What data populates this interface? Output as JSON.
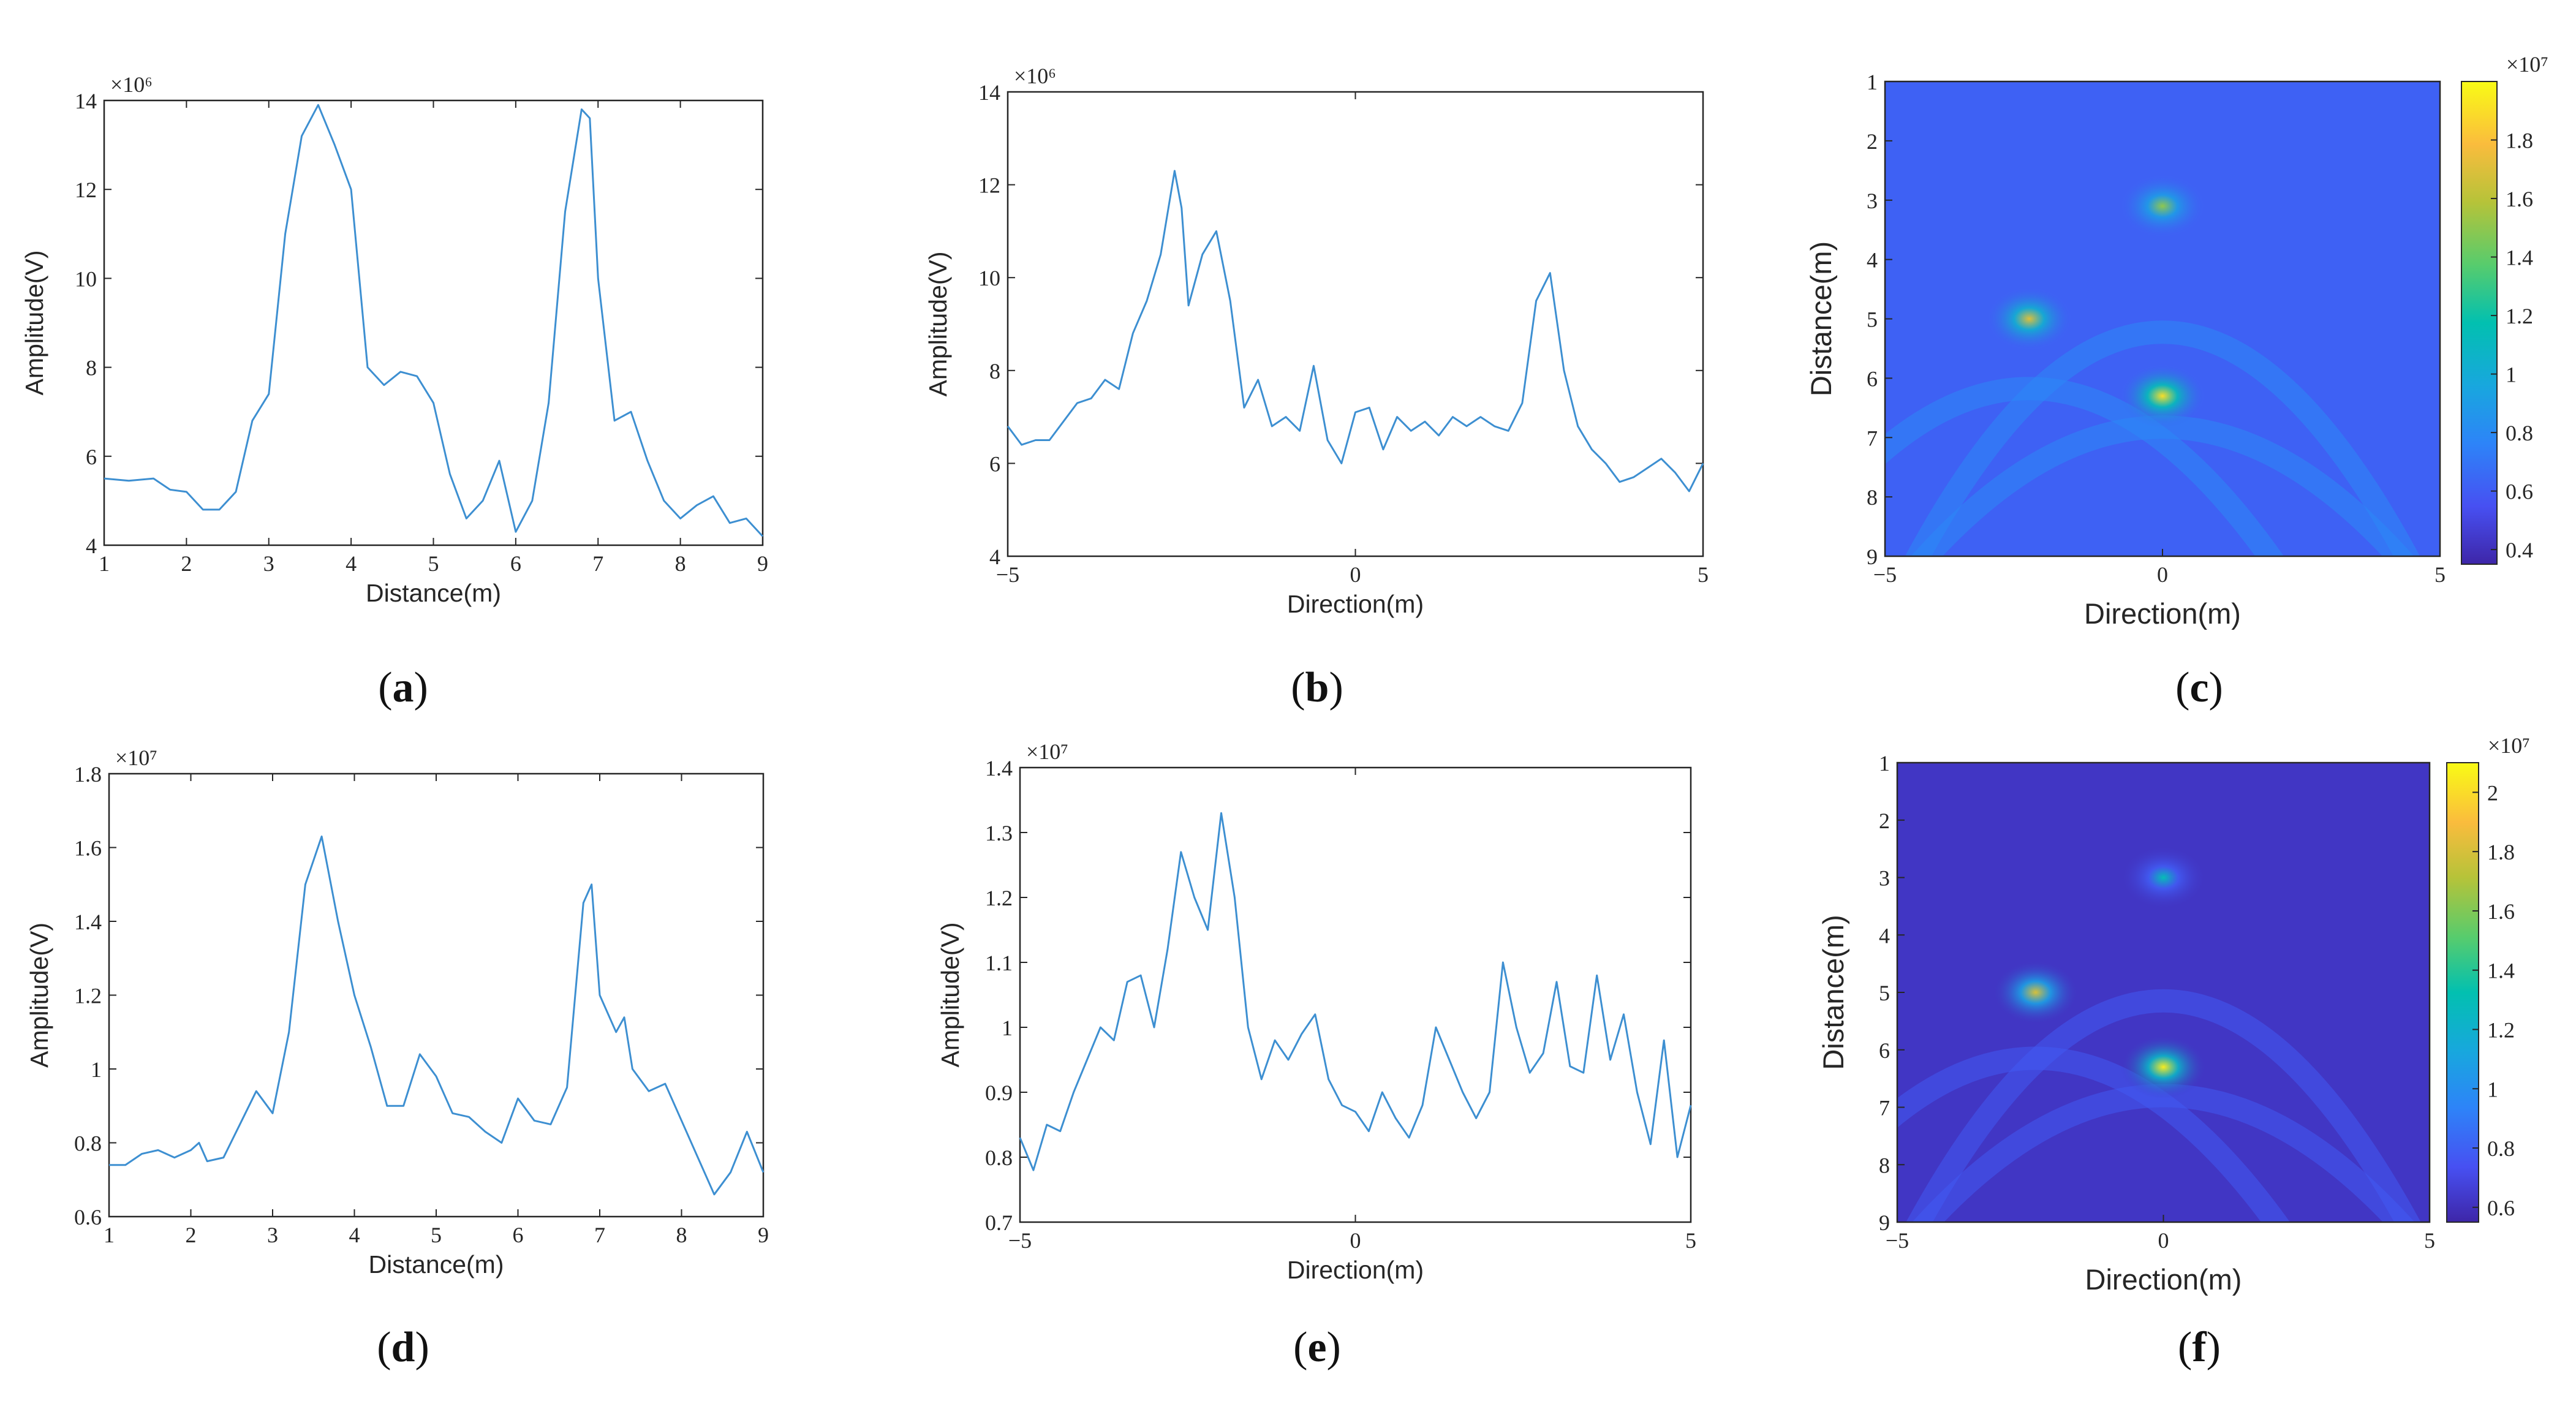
{
  "panel_labels": [
    "(a)",
    "(b)",
    "(c)",
    "(d)",
    "(e)",
    "(f)"
  ],
  "colors": {
    "line": "#3d8fd1",
    "axes": "#262626"
  },
  "chart_data": [
    {
      "id": "a",
      "type": "line",
      "xlabel": "Distance(m)",
      "ylabel": "Amplitude(V)",
      "exponent": "×10⁶",
      "xlim": [
        1,
        9
      ],
      "ylim": [
        4,
        14
      ],
      "xticks": [
        1,
        2,
        3,
        4,
        5,
        6,
        7,
        8,
        9
      ],
      "yticks": [
        4,
        6,
        8,
        10,
        12,
        14
      ],
      "series": [
        {
          "x": [
            1,
            1.3,
            1.6,
            1.8,
            2,
            2.2,
            2.4,
            2.6,
            2.8,
            3,
            3.2,
            3.4,
            3.6,
            3.8,
            4,
            4.2,
            4.4,
            4.6,
            4.8,
            5,
            5.2,
            5.4,
            5.6,
            5.8,
            6,
            6.2,
            6.4,
            6.6,
            6.8,
            6.9,
            7,
            7.2,
            7.4,
            7.6,
            7.8,
            8,
            8.2,
            8.4,
            8.6,
            8.8,
            9
          ],
          "y": [
            5.5,
            5.45,
            5.5,
            5.25,
            5.2,
            4.8,
            4.8,
            5.2,
            6.8,
            7.4,
            11.0,
            13.2,
            13.9,
            13.0,
            12.0,
            8.0,
            7.6,
            7.9,
            7.8,
            7.2,
            5.6,
            4.6,
            5.0,
            5.9,
            4.3,
            5.0,
            7.2,
            11.5,
            13.8,
            13.6,
            10.0,
            6.8,
            7.0,
            5.9,
            5.0,
            4.6,
            4.9,
            5.1,
            4.5,
            4.6,
            4.2
          ]
        }
      ]
    },
    {
      "id": "b",
      "type": "line",
      "xlabel": "Direction(m)",
      "ylabel": "Amplitude(V)",
      "exponent": "×10⁶",
      "xlim": [
        -5,
        5
      ],
      "ylim": [
        4,
        14
      ],
      "xticks": [
        -5,
        0,
        5
      ],
      "yticks": [
        4,
        6,
        8,
        10,
        12,
        14
      ],
      "series": [
        {
          "x": [
            -5,
            -4.8,
            -4.6,
            -4.4,
            -4.2,
            -4,
            -3.8,
            -3.6,
            -3.4,
            -3.2,
            -3,
            -2.8,
            -2.6,
            -2.5,
            -2.4,
            -2.2,
            -2,
            -1.8,
            -1.6,
            -1.4,
            -1.2,
            -1,
            -0.8,
            -0.6,
            -0.4,
            -0.2,
            0,
            0.2,
            0.4,
            0.6,
            0.8,
            1,
            1.2,
            1.4,
            1.6,
            1.8,
            2,
            2.2,
            2.4,
            2.6,
            2.8,
            3,
            3.2,
            3.4,
            3.6,
            3.8,
            4,
            4.2,
            4.4,
            4.6,
            4.8,
            5
          ],
          "y": [
            6.8,
            6.4,
            6.5,
            6.5,
            6.9,
            7.3,
            7.4,
            7.8,
            7.6,
            8.8,
            9.5,
            10.5,
            12.3,
            11.5,
            9.4,
            10.5,
            11.0,
            9.5,
            7.2,
            7.8,
            6.8,
            7.0,
            6.7,
            8.1,
            6.5,
            6.0,
            7.1,
            7.2,
            6.3,
            7.0,
            6.7,
            6.9,
            6.6,
            7.0,
            6.8,
            7.0,
            6.8,
            6.7,
            7.3,
            9.5,
            10.1,
            8.0,
            6.8,
            6.3,
            6.0,
            5.6,
            5.7,
            5.9,
            6.1,
            5.8,
            5.4,
            6.0
          ]
        }
      ]
    },
    {
      "id": "c",
      "type": "heatmap",
      "xlabel": "Direction(m)",
      "ylabel": "Distance(m)",
      "exponent": "×10⁷",
      "xlim": [
        -5,
        5
      ],
      "ylim": [
        1,
        9
      ],
      "xticks": [
        -5,
        0,
        5
      ],
      "yticks": [
        1,
        2,
        3,
        4,
        5,
        6,
        7,
        8,
        9
      ],
      "colorbar_ticks": [
        0.4,
        0.6,
        0.8,
        1,
        1.2,
        1.4,
        1.6,
        1.8
      ],
      "colorbar_range": [
        0.35,
        2.0
      ],
      "hotspots": [
        {
          "x": 0.0,
          "y": 3.1,
          "value": 1.5
        },
        {
          "x": -2.4,
          "y": 5.0,
          "value": 1.7
        },
        {
          "x": 0.0,
          "y": 6.3,
          "value": 1.9
        }
      ]
    },
    {
      "id": "d",
      "type": "line",
      "xlabel": "Distance(m)",
      "ylabel": "Amplitude(V)",
      "exponent": "×10⁷",
      "xlim": [
        1,
        9
      ],
      "ylim": [
        0.6,
        1.8
      ],
      "xticks": [
        1,
        2,
        3,
        4,
        5,
        6,
        7,
        8,
        9
      ],
      "yticks": [
        0.6,
        0.8,
        1,
        1.2,
        1.4,
        1.6,
        1.8
      ],
      "series": [
        {
          "x": [
            1,
            1.2,
            1.4,
            1.6,
            1.8,
            2,
            2.1,
            2.2,
            2.4,
            2.6,
            2.8,
            3,
            3.2,
            3.4,
            3.6,
            3.8,
            4,
            4.2,
            4.4,
            4.6,
            4.8,
            5,
            5.2,
            5.4,
            5.6,
            5.8,
            6,
            6.2,
            6.4,
            6.6,
            6.8,
            6.9,
            7,
            7.2,
            7.3,
            7.4,
            7.6,
            7.8,
            8,
            8.2,
            8.4,
            8.6,
            8.8,
            9
          ],
          "y": [
            0.74,
            0.74,
            0.77,
            0.78,
            0.76,
            0.78,
            0.8,
            0.75,
            0.76,
            0.85,
            0.94,
            0.88,
            1.1,
            1.5,
            1.63,
            1.4,
            1.2,
            1.06,
            0.9,
            0.9,
            1.04,
            0.98,
            0.88,
            0.87,
            0.83,
            0.8,
            0.92,
            0.86,
            0.85,
            0.95,
            1.45,
            1.5,
            1.2,
            1.1,
            1.14,
            1.0,
            0.94,
            0.96,
            0.86,
            0.76,
            0.66,
            0.72,
            0.83,
            0.72
          ]
        }
      ]
    },
    {
      "id": "e",
      "type": "line",
      "xlabel": "Direction(m)",
      "ylabel": "Amplitude(V)",
      "exponent": "×10⁷",
      "xlim": [
        -5,
        5
      ],
      "ylim": [
        0.7,
        1.4
      ],
      "xticks": [
        -5,
        0,
        5
      ],
      "yticks": [
        0.7,
        0.8,
        0.9,
        1,
        1.1,
        1.2,
        1.3,
        1.4
      ],
      "series": [
        {
          "x": [
            -5,
            -4.8,
            -4.6,
            -4.4,
            -4.2,
            -4,
            -3.8,
            -3.6,
            -3.4,
            -3.2,
            -3,
            -2.8,
            -2.6,
            -2.4,
            -2.2,
            -2,
            -1.8,
            -1.6,
            -1.4,
            -1.2,
            -1,
            -0.8,
            -0.6,
            -0.4,
            -0.2,
            0,
            0.2,
            0.4,
            0.6,
            0.8,
            1,
            1.2,
            1.4,
            1.6,
            1.8,
            2,
            2.2,
            2.4,
            2.6,
            2.8,
            3,
            3.2,
            3.4,
            3.6,
            3.8,
            4,
            4.2,
            4.4,
            4.6,
            4.8,
            5
          ],
          "y": [
            0.83,
            0.78,
            0.85,
            0.84,
            0.9,
            0.95,
            1.0,
            0.98,
            1.07,
            1.08,
            1.0,
            1.12,
            1.27,
            1.2,
            1.15,
            1.33,
            1.2,
            1.0,
            0.92,
            0.98,
            0.95,
            0.99,
            1.02,
            0.92,
            0.88,
            0.87,
            0.84,
            0.9,
            0.86,
            0.83,
            0.88,
            1.0,
            0.95,
            0.9,
            0.86,
            0.9,
            1.1,
            1.0,
            0.93,
            0.96,
            1.07,
            0.94,
            0.93,
            1.08,
            0.95,
            1.02,
            0.9,
            0.82,
            0.98,
            0.8,
            0.88
          ]
        }
      ]
    },
    {
      "id": "f",
      "type": "heatmap",
      "xlabel": "Direction(m)",
      "ylabel": "Distance(m)",
      "exponent": "×10⁷",
      "xlim": [
        -5,
        5
      ],
      "ylim": [
        1,
        9
      ],
      "xticks": [
        -5,
        0,
        5
      ],
      "yticks": [
        1,
        2,
        3,
        4,
        5,
        6,
        7,
        8,
        9
      ],
      "colorbar_ticks": [
        0.6,
        0.8,
        1,
        1.2,
        1.4,
        1.6,
        1.8,
        2
      ],
      "colorbar_range": [
        0.55,
        2.1
      ],
      "hotspots": [
        {
          "x": 0.0,
          "y": 3.0,
          "value": 1.3
        },
        {
          "x": -2.4,
          "y": 5.0,
          "value": 1.8
        },
        {
          "x": 0.0,
          "y": 6.3,
          "value": 2.05
        }
      ]
    }
  ]
}
